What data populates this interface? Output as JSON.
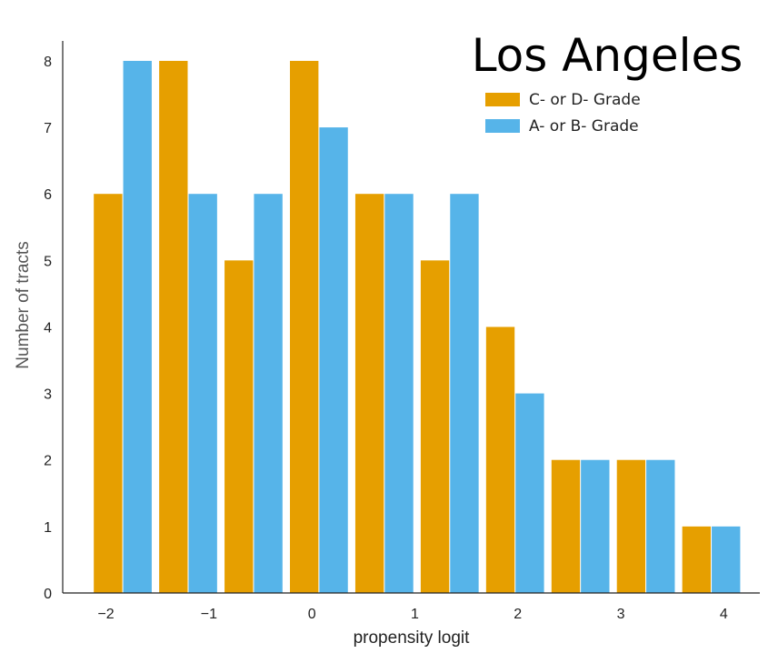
{
  "chart_data": {
    "type": "bar",
    "title": "Los Angeles",
    "xlabel": "propensity logit",
    "ylabel": "Number of tracts",
    "x_ticks": [
      -2,
      -1,
      0,
      1,
      2,
      3,
      4
    ],
    "x_tick_labels": [
      "−2",
      "−1",
      "0",
      "1",
      "2",
      "3",
      "4"
    ],
    "y_ticks": [
      0,
      1,
      2,
      3,
      4,
      5,
      6,
      7,
      8
    ],
    "y_tick_labels": [
      "0",
      "1",
      "2",
      "3",
      "4",
      "5",
      "6",
      "7",
      "8"
    ],
    "xlim": [
      -2.42,
      4.35
    ],
    "ylim": [
      0,
      8.3
    ],
    "bin_edges": [
      -2.15,
      -1.515,
      -0.88,
      -0.245,
      0.39,
      1.025,
      1.66,
      2.295,
      2.93,
      3.565,
      4.2
    ],
    "grid": false,
    "legend_position": "top-right",
    "series": [
      {
        "name": "C- or D- Grade",
        "color": "#E69F00",
        "values": [
          6,
          8,
          5,
          8,
          6,
          5,
          4,
          2,
          2,
          1
        ]
      },
      {
        "name": "A- or B- Grade",
        "color": "#56B4E9",
        "values": [
          8,
          6,
          6,
          7,
          6,
          6,
          3,
          2,
          2,
          1
        ]
      }
    ]
  }
}
